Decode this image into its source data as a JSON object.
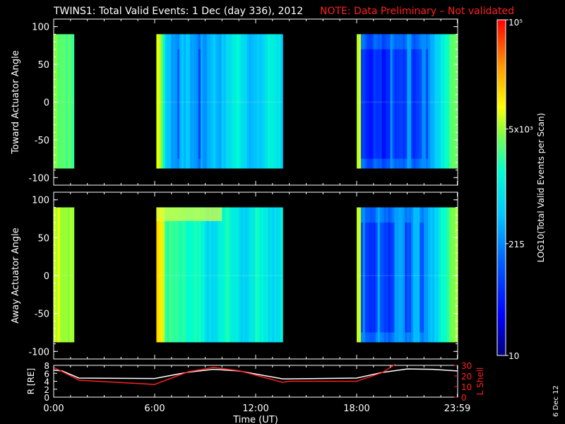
{
  "title": {
    "main": "TWINS1: Total Valid Events:  1 Dec (day 336), 2012",
    "note": "NOTE: Data Preliminary – Not validated",
    "main_color": "#ffffff",
    "note_color": "#ff2020"
  },
  "side_date": "6 Dec 12",
  "colorbar": {
    "label": "LOG10(Total Valid Events per Scan)",
    "ticks": [
      "10⁵",
      "5x10³",
      "215",
      "10"
    ],
    "tick_values": [
      100000,
      5000,
      215,
      10
    ],
    "scale": "log",
    "range": [
      10,
      100000
    ]
  },
  "chart_data": [
    {
      "type": "heatmap",
      "name": "toward",
      "ylabel": "Toward Actuator Angle",
      "ylim": [
        -110,
        110
      ],
      "yticks": [
        "100",
        "50",
        "0",
        "-50",
        "-100"
      ],
      "ytick_values": [
        100,
        50,
        0,
        -50,
        -100
      ],
      "xlim": [
        0,
        24
      ],
      "segments": [
        {
          "t_start": 0.0,
          "t_end": 1.2,
          "angle_range": [
            -88,
            90
          ],
          "level": "high (~5x10³, green/yellow)"
        },
        {
          "t_start": 6.1,
          "t_end": 13.6,
          "angle_range": [
            -88,
            90
          ],
          "level": "yellow at start, mostly blue/cyan (~215)"
        },
        {
          "t_start": 18.0,
          "t_end": 23.99,
          "angle_range": [
            -88,
            90
          ],
          "level": "mostly dark blue (~10-215), cyan/green toward end"
        }
      ]
    },
    {
      "type": "heatmap",
      "name": "away",
      "ylabel": "Away Actuator Angle",
      "ylim": [
        -110,
        110
      ],
      "yticks": [
        "100",
        "50",
        "0",
        "-50",
        "-100"
      ],
      "ytick_values": [
        100,
        50,
        0,
        -50,
        -100
      ],
      "xlim": [
        0,
        24
      ],
      "segments": [
        {
          "t_start": 0.0,
          "t_end": 1.2,
          "angle_range": [
            -88,
            90
          ],
          "level": "high (yellow/orange)"
        },
        {
          "t_start": 6.1,
          "t_end": 13.6,
          "angle_range": [
            -88,
            90
          ],
          "level": "yellow/orange at start, green/cyan, yellow band near +80"
        },
        {
          "t_start": 18.0,
          "t_end": 23.99,
          "angle_range": [
            -88,
            90
          ],
          "level": "mostly blue, green toward end"
        }
      ]
    },
    {
      "type": "line",
      "name": "orbit",
      "xlabel": "Time (UT)",
      "ylabel_left": "R [RE]",
      "ylabel_right": "L Shell",
      "xlim": [
        0,
        24
      ],
      "ylim_left": [
        0,
        8
      ],
      "ylim_right": [
        0,
        30
      ],
      "xticks": [
        "0:00",
        "6:00",
        "12:00",
        "18:00",
        "23:59"
      ],
      "xtick_values": [
        0,
        6,
        12,
        18,
        23.98
      ],
      "yticks_left": [
        "8",
        "6",
        "4",
        "2",
        "0"
      ],
      "yticks_left_values": [
        8,
        6,
        4,
        2,
        0
      ],
      "yticks_right": [
        "30",
        "20",
        "10",
        "0"
      ],
      "yticks_right_values": [
        30,
        20,
        10,
        0
      ],
      "series": [
        {
          "axis": "left",
          "color": "#ffffff",
          "x": [
            0,
            0.5,
            1.5,
            6.0,
            8.0,
            9.5,
            11.0,
            13.6,
            14.0,
            18.0,
            19.5,
            21.0,
            22.5,
            23.99
          ],
          "y": [
            6.8,
            6.6,
            4.8,
            4.7,
            6.3,
            7.0,
            6.6,
            4.6,
            4.6,
            4.8,
            6.2,
            7.1,
            7.0,
            6.6
          ]
        },
        {
          "axis": "right",
          "color": "#ff2020",
          "x": [
            0,
            0.4,
            1.5,
            6.0,
            8.0,
            9.5,
            11.0,
            13.6,
            14.0,
            18.0,
            19.5,
            20.3
          ],
          "y": [
            28,
            25,
            16,
            12,
            24,
            28,
            25,
            14,
            15,
            15,
            23,
            31
          ]
        }
      ]
    }
  ]
}
